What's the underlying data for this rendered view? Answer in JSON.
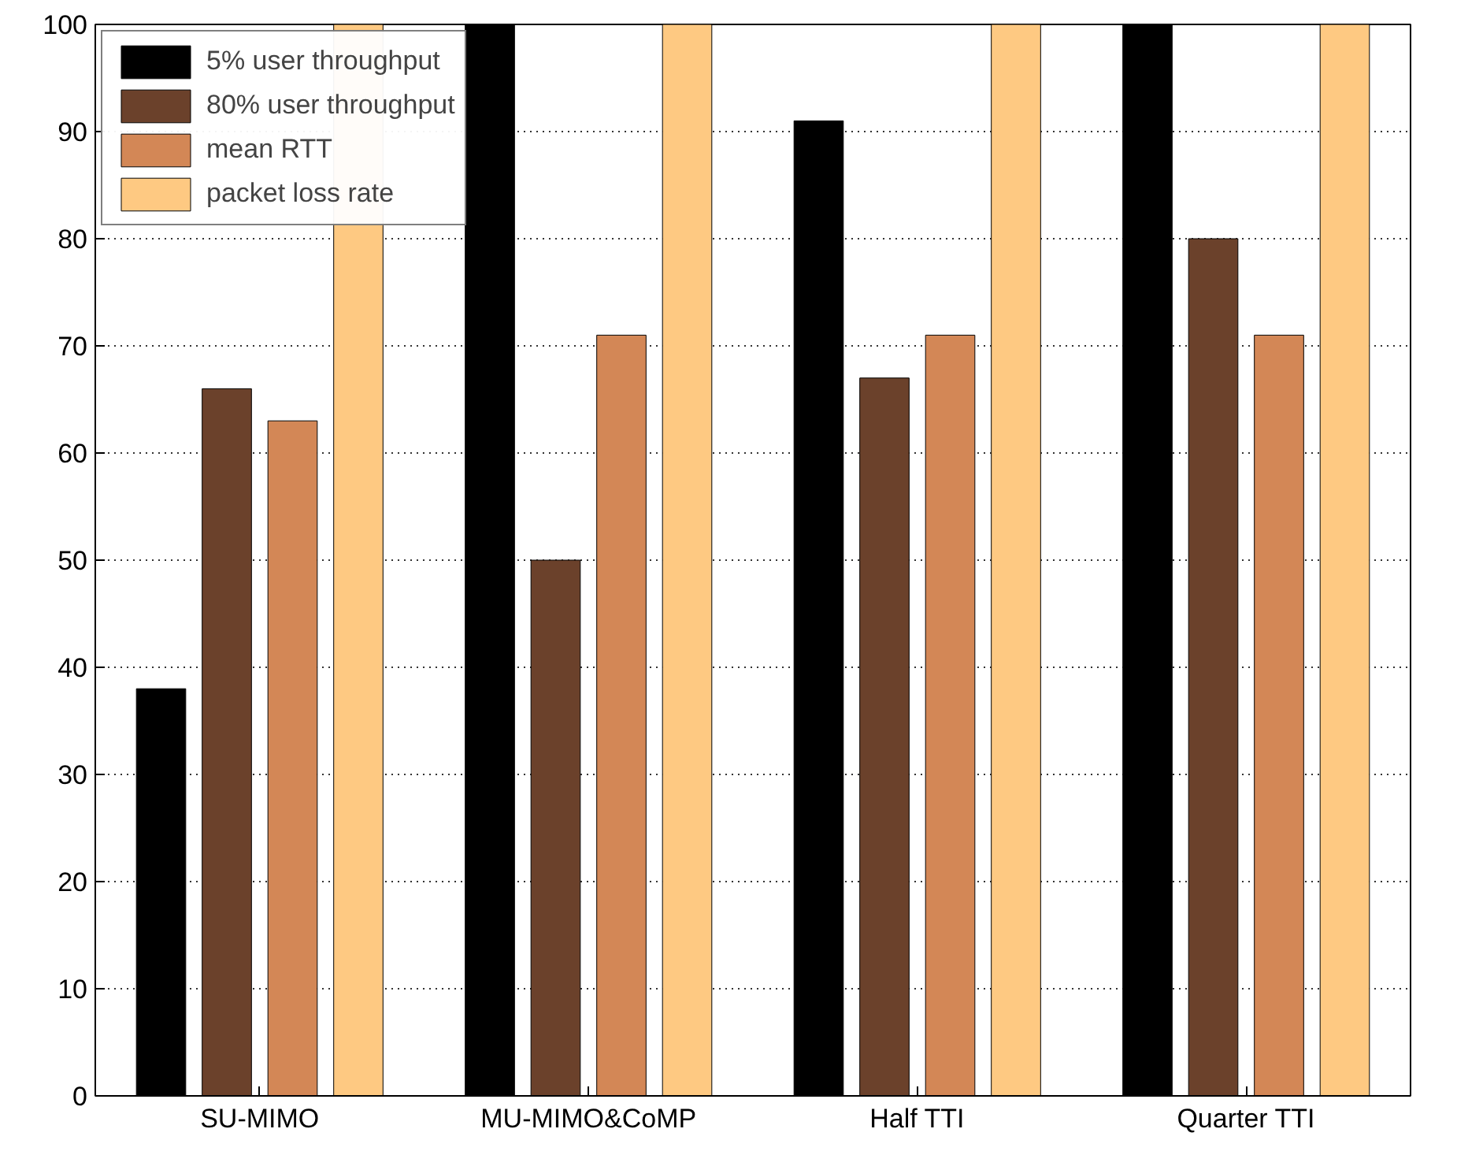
{
  "chart_data": {
    "type": "bar",
    "categories": [
      "SU-MIMO",
      "MU-MIMO&CoMP",
      "Half TTI",
      "Quarter TTI"
    ],
    "series": [
      {
        "name": "5% user throughput",
        "color": "#000000",
        "values": [
          38,
          100,
          91,
          100
        ]
      },
      {
        "name": "80% user throughput",
        "color": "#6b412b",
        "values": [
          66,
          50,
          67,
          80
        ]
      },
      {
        "name": "mean RTT",
        "color": "#d38756",
        "values": [
          63,
          71,
          71,
          71
        ]
      },
      {
        "name": "packet loss rate",
        "color": "#fec982",
        "values": [
          100,
          100,
          100,
          100
        ]
      }
    ],
    "ylim": [
      0,
      100
    ],
    "yticks": [
      0,
      10,
      20,
      30,
      40,
      50,
      60,
      70,
      80,
      90,
      100
    ],
    "grid": "y",
    "legend": "top left"
  }
}
